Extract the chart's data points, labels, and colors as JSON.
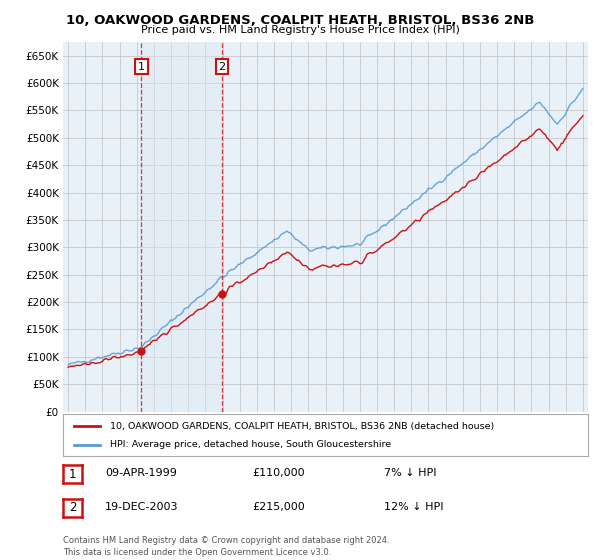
{
  "title": "10, OAKWOOD GARDENS, COALPIT HEATH, BRISTOL, BS36 2NB",
  "subtitle": "Price paid vs. HM Land Registry's House Price Index (HPI)",
  "legend_line1": "10, OAKWOOD GARDENS, COALPIT HEATH, BRISTOL, BS36 2NB (detached house)",
  "legend_line2": "HPI: Average price, detached house, South Gloucestershire",
  "table_rows": [
    {
      "num": "1",
      "date": "09-APR-1999",
      "price": "£110,000",
      "change": "7% ↓ HPI"
    },
    {
      "num": "2",
      "date": "19-DEC-2003",
      "price": "£215,000",
      "change": "12% ↓ HPI"
    }
  ],
  "footnote": "Contains HM Land Registry data © Crown copyright and database right 2024.\nThis data is licensed under the Open Government Licence v3.0.",
  "hpi_color": "#5b9bd5",
  "price_color": "#cc1111",
  "shade_color": "#dce9f5",
  "ylim": [
    0,
    675000
  ],
  "yticks": [
    0,
    50000,
    100000,
    150000,
    200000,
    250000,
    300000,
    350000,
    400000,
    450000,
    500000,
    550000,
    600000,
    650000
  ],
  "background_color": "#ffffff",
  "grid_color": "#c8c8c8",
  "sale1_year": 1999.27,
  "sale1_price": 110000,
  "sale2_year": 2003.96,
  "sale2_price": 215000,
  "xlim_start": 1994.7,
  "xlim_end": 2025.3
}
